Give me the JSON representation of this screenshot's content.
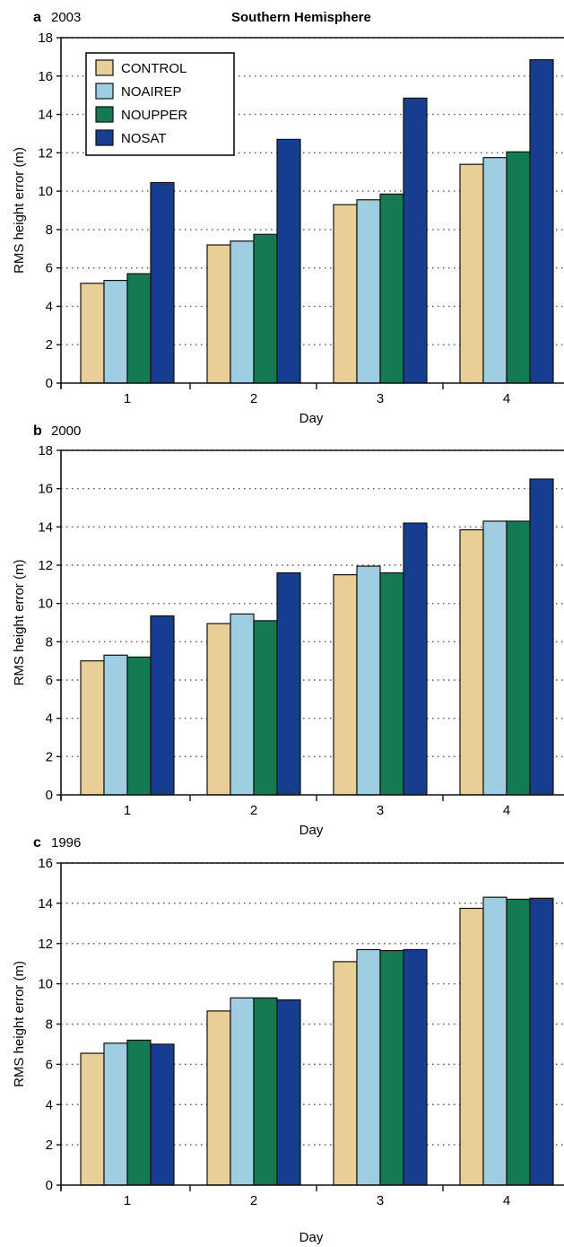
{
  "title": "Southern Hemisphere",
  "legend": [
    {
      "label": "CONTROL",
      "color": "#e7cf95"
    },
    {
      "label": "NOAIREP",
      "color": "#9fcee2"
    },
    {
      "label": "NOUPPER",
      "color": "#137a52"
    },
    {
      "label": "NOSAT",
      "color": "#173e8e"
    }
  ],
  "chart_data": [
    {
      "type": "bar",
      "panel": "a",
      "year": "2003",
      "title": "Southern Hemisphere",
      "xlabel": "Day",
      "ylabel": "RMS height error (m)",
      "categories": [
        "1",
        "2",
        "3",
        "4"
      ],
      "ylim": [
        0,
        18
      ],
      "yticks": [
        0,
        2,
        4,
        6,
        8,
        10,
        12,
        14,
        16,
        18
      ],
      "grid": "dotted horizontal",
      "legend_position": "top-left",
      "series": [
        {
          "name": "CONTROL",
          "color": "#e7cf95",
          "values": [
            5.2,
            7.2,
            9.3,
            11.4
          ]
        },
        {
          "name": "NOAIREP",
          "color": "#9fcee2",
          "values": [
            5.35,
            7.4,
            9.55,
            11.75
          ]
        },
        {
          "name": "NOUPPER",
          "color": "#137a52",
          "values": [
            5.7,
            7.75,
            9.85,
            12.05
          ]
        },
        {
          "name": "NOSAT",
          "color": "#173e8e",
          "values": [
            10.45,
            12.7,
            14.85,
            16.85
          ]
        }
      ]
    },
    {
      "type": "bar",
      "panel": "b",
      "year": "2000",
      "xlabel": "Day",
      "ylabel": "RMS height error (m)",
      "categories": [
        "1",
        "2",
        "3",
        "4"
      ],
      "ylim": [
        0,
        18
      ],
      "yticks": [
        0,
        2,
        4,
        6,
        8,
        10,
        12,
        14,
        16,
        18
      ],
      "grid": "dotted horizontal",
      "series": [
        {
          "name": "CONTROL",
          "color": "#e7cf95",
          "values": [
            7.0,
            8.95,
            11.5,
            13.85
          ]
        },
        {
          "name": "NOAIREP",
          "color": "#9fcee2",
          "values": [
            7.3,
            9.45,
            11.95,
            14.3
          ]
        },
        {
          "name": "NOUPPER",
          "color": "#137a52",
          "values": [
            7.2,
            9.1,
            11.6,
            14.3
          ]
        },
        {
          "name": "NOSAT",
          "color": "#173e8e",
          "values": [
            9.35,
            11.6,
            14.2,
            16.5
          ]
        }
      ]
    },
    {
      "type": "bar",
      "panel": "c",
      "year": "1996",
      "xlabel": "Day",
      "ylabel": "RMS height error (m)",
      "categories": [
        "1",
        "2",
        "3",
        "4"
      ],
      "ylim": [
        0,
        16
      ],
      "yticks": [
        0,
        2,
        4,
        6,
        8,
        10,
        12,
        14,
        16
      ],
      "grid": "dotted horizontal",
      "series": [
        {
          "name": "CONTROL",
          "color": "#e7cf95",
          "values": [
            6.55,
            8.65,
            11.1,
            13.75
          ]
        },
        {
          "name": "NOAIREP",
          "color": "#9fcee2",
          "values": [
            7.05,
            9.3,
            11.7,
            14.3
          ]
        },
        {
          "name": "NOUPPER",
          "color": "#137a52",
          "values": [
            7.2,
            9.3,
            11.65,
            14.2
          ]
        },
        {
          "name": "NOSAT",
          "color": "#173e8e",
          "values": [
            7.0,
            9.2,
            11.7,
            14.25
          ]
        }
      ]
    }
  ]
}
